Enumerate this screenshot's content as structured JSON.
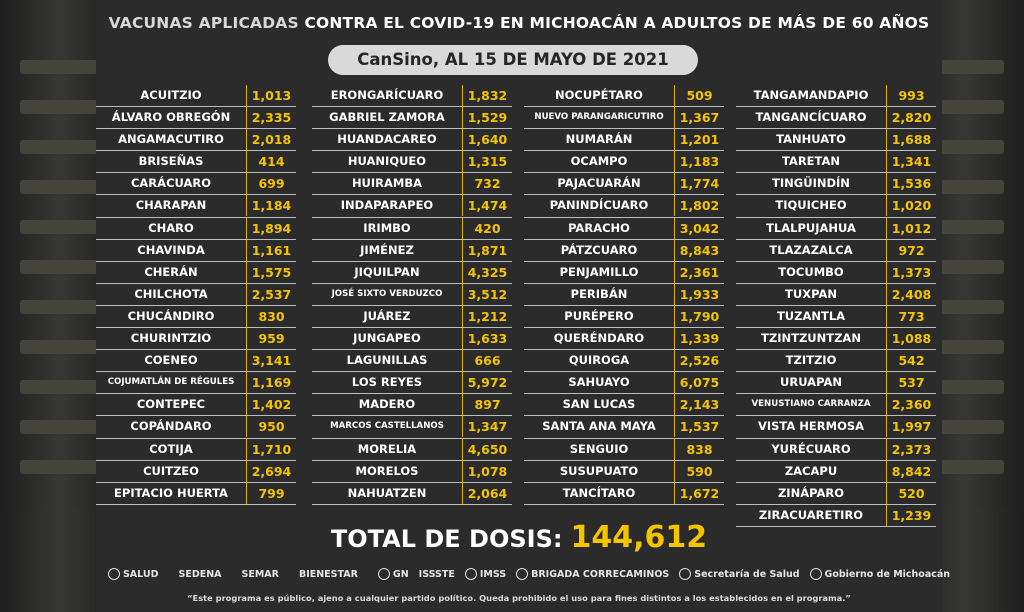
{
  "title": {
    "part1": "VACUNAS APLICADAS ",
    "part2": "CONTRA EL COVID-19 EN MICHOACÁN A ADULTOS DE MÁS DE 60 AÑOS"
  },
  "subtitle": "CanSino, AL 15 DE MAYO DE 2021",
  "columns": [
    [
      {
        "m": "ACUITZIO",
        "v": "1,013"
      },
      {
        "m": "ÁLVARO OBREGÓN",
        "v": "2,335"
      },
      {
        "m": "ANGAMACUTIRO",
        "v": "2,018"
      },
      {
        "m": "BRISEÑAS",
        "v": "414"
      },
      {
        "m": "CARÁCUARO",
        "v": "699"
      },
      {
        "m": "CHARAPAN",
        "v": "1,184"
      },
      {
        "m": "CHARO",
        "v": "1,894"
      },
      {
        "m": "CHAVINDA",
        "v": "1,161"
      },
      {
        "m": "CHERÁN",
        "v": "1,575"
      },
      {
        "m": "CHILCHOTA",
        "v": "2,537"
      },
      {
        "m": "CHUCÁNDIRO",
        "v": "830"
      },
      {
        "m": "CHURINTZIO",
        "v": "959"
      },
      {
        "m": "COENEO",
        "v": "3,141"
      },
      {
        "m": "COJUMATLÁN DE RÉGULES",
        "v": "1,169"
      },
      {
        "m": "CONTEPEC",
        "v": "1,402"
      },
      {
        "m": "COPÁNDARO",
        "v": "950"
      },
      {
        "m": "COTIJA",
        "v": "1,710"
      },
      {
        "m": "CUITZEO",
        "v": "2,694"
      },
      {
        "m": "EPITACIO HUERTA",
        "v": "799"
      }
    ],
    [
      {
        "m": "ERONGARÍCUARO",
        "v": "1,832"
      },
      {
        "m": "GABRIEL ZAMORA",
        "v": "1,529"
      },
      {
        "m": "HUANDACAREO",
        "v": "1,640"
      },
      {
        "m": "HUANIQUEO",
        "v": "1,315"
      },
      {
        "m": "HUIRAMBA",
        "v": "732"
      },
      {
        "m": "INDAPARAPEO",
        "v": "1,474"
      },
      {
        "m": "IRIMBO",
        "v": "420"
      },
      {
        "m": "JIMÉNEZ",
        "v": "1,871"
      },
      {
        "m": "JIQUILPAN",
        "v": "4,325"
      },
      {
        "m": "JOSÉ SIXTO VERDUZCO",
        "v": "3,512"
      },
      {
        "m": "JUÁREZ",
        "v": "1,212"
      },
      {
        "m": "JUNGAPEO",
        "v": "1,633"
      },
      {
        "m": "LAGUNILLAS",
        "v": "666"
      },
      {
        "m": "LOS REYES",
        "v": "5,972"
      },
      {
        "m": "MADERO",
        "v": "897"
      },
      {
        "m": "MARCOS CASTELLANOS",
        "v": "1,347"
      },
      {
        "m": "MORELIA",
        "v": "4,650"
      },
      {
        "m": "MORELOS",
        "v": "1,078"
      },
      {
        "m": "NAHUATZEN",
        "v": "2,064"
      }
    ],
    [
      {
        "m": "NOCUPÉTARO",
        "v": "509"
      },
      {
        "m": "NUEVO PARANGARICUTIRO",
        "v": "1,367"
      },
      {
        "m": "NUMARÁN",
        "v": "1,201"
      },
      {
        "m": "OCAMPO",
        "v": "1,183"
      },
      {
        "m": "PAJACUARÁN",
        "v": "1,774"
      },
      {
        "m": "PANINDÍCUARO",
        "v": "1,802"
      },
      {
        "m": "PARACHO",
        "v": "3,042"
      },
      {
        "m": "PÁTZCUARO",
        "v": "8,843"
      },
      {
        "m": "PENJAMILLO",
        "v": "2,361"
      },
      {
        "m": "PERIBÁN",
        "v": "1,933"
      },
      {
        "m": "PURÉPERO",
        "v": "1,790"
      },
      {
        "m": "QUERÉNDARO",
        "v": "1,339"
      },
      {
        "m": "QUIROGA",
        "v": "2,526"
      },
      {
        "m": "SAHUAYO",
        "v": "6,075"
      },
      {
        "m": "SAN LUCAS",
        "v": "2,143"
      },
      {
        "m": "SANTA ANA MAYA",
        "v": "1,537"
      },
      {
        "m": "SENGUIO",
        "v": "838"
      },
      {
        "m": "SUSUPUATO",
        "v": "590"
      },
      {
        "m": "TANCÍTARO",
        "v": "1,672"
      }
    ],
    [
      {
        "m": "TANGAMANDAPIO",
        "v": "993"
      },
      {
        "m": "TANGANCÍCUARO",
        "v": "2,820"
      },
      {
        "m": "TANHUATO",
        "v": "1,688"
      },
      {
        "m": "TARETAN",
        "v": "1,341"
      },
      {
        "m": "TINGÜINDÍN",
        "v": "1,536"
      },
      {
        "m": "TIQUICHEO",
        "v": "1,020"
      },
      {
        "m": "TLALPUJAHUA",
        "v": "1,012"
      },
      {
        "m": "TLAZAZALCA",
        "v": "972"
      },
      {
        "m": "TOCUMBO",
        "v": "1,373"
      },
      {
        "m": "TUXPAN",
        "v": "2,408"
      },
      {
        "m": "TUZANTLA",
        "v": "773"
      },
      {
        "m": "TZINTZUNTZAN",
        "v": "1,088"
      },
      {
        "m": "TZITZIO",
        "v": "542"
      },
      {
        "m": "URUAPAN",
        "v": "537"
      },
      {
        "m": "VENUSTIANO CARRANZA",
        "v": "2,360"
      },
      {
        "m": "VISTA HERMOSA",
        "v": "1,997"
      },
      {
        "m": "YURÉCUARO",
        "v": "2,373"
      },
      {
        "m": "ZACAPU",
        "v": "8,842"
      },
      {
        "m": "ZINÁPARO",
        "v": "520"
      },
      {
        "m": "ZIRACUARETIRO",
        "v": "1,239"
      }
    ]
  ],
  "total": {
    "label": "TOTAL DE DOSIS:",
    "value": "144,612"
  },
  "logos": [
    "SALUD",
    "SEDENA",
    "SEMAR",
    "BIENESTAR",
    "GN",
    "ISSSTE",
    "IMSS",
    "BRIGADA CORRECAMINOS",
    "Secretaría de Salud",
    "Gobierno de Michoacán"
  ],
  "disclaimer": "“Este programa es público, ajeno a cualquier partido político. Queda prohibido el uso para fines distintos a los establecidos en el programa.”",
  "colors": {
    "accent": "#f5c400",
    "background": "#2b2b2b",
    "text": "#ffffff"
  }
}
